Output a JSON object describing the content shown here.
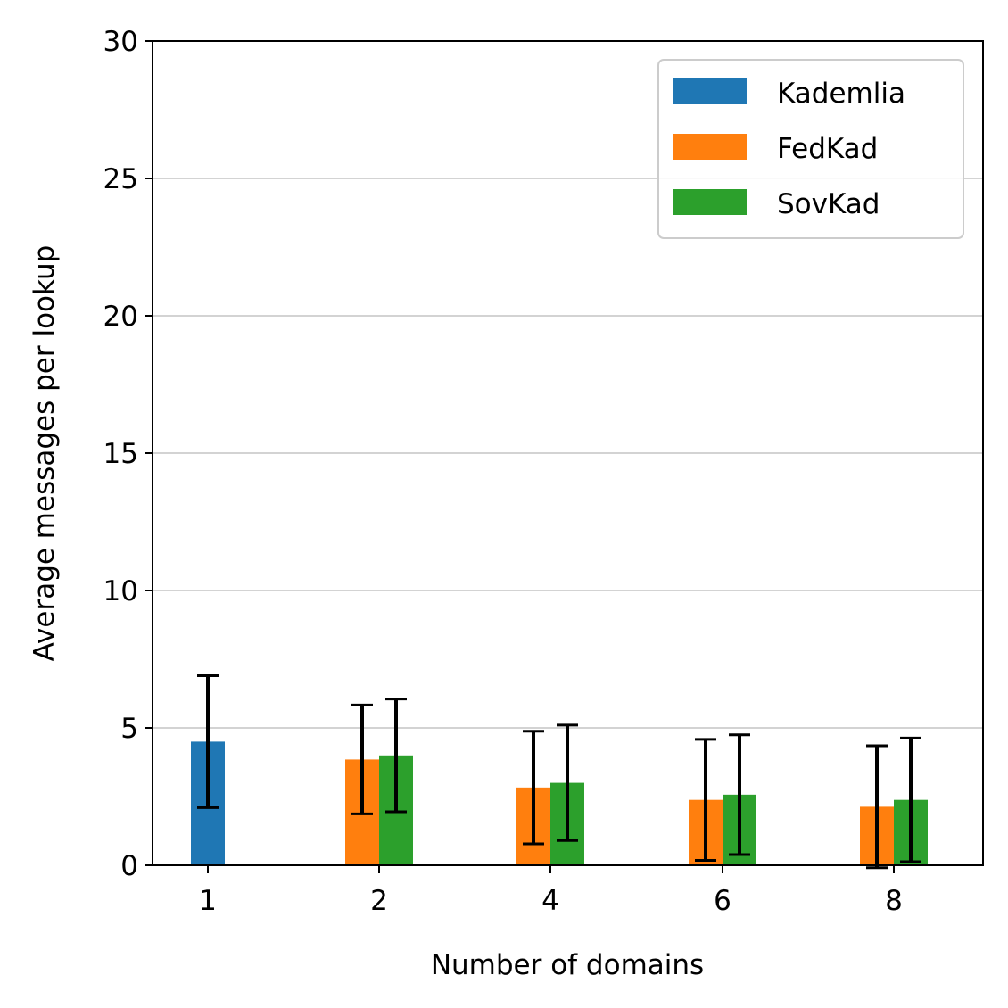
{
  "chart_data": {
    "type": "bar",
    "categories": [
      "1",
      "2",
      "4",
      "6",
      "8"
    ],
    "series": [
      {
        "name": "Kademlia",
        "color": "#1f77b4",
        "values": [
          4.5,
          null,
          null,
          null,
          null
        ],
        "errors": [
          2.4,
          null,
          null,
          null,
          null
        ]
      },
      {
        "name": "FedKad",
        "color": "#ff7f0e",
        "values": [
          null,
          3.85,
          2.83,
          2.38,
          2.13
        ],
        "errors": [
          null,
          1.98,
          2.05,
          2.2,
          2.22
        ]
      },
      {
        "name": "SovKad",
        "color": "#2ca02c",
        "values": [
          null,
          4.0,
          3.0,
          2.57,
          2.38
        ],
        "errors": [
          null,
          2.05,
          2.1,
          2.18,
          2.25
        ]
      }
    ],
    "xlabel": "Number of domains",
    "ylabel": "Average messages per lookup",
    "ylim": [
      0,
      30
    ],
    "yticks": [
      "0",
      "5",
      "10",
      "15",
      "20",
      "25",
      "30"
    ],
    "grid": "horizontal",
    "legend_position": "top-right"
  }
}
